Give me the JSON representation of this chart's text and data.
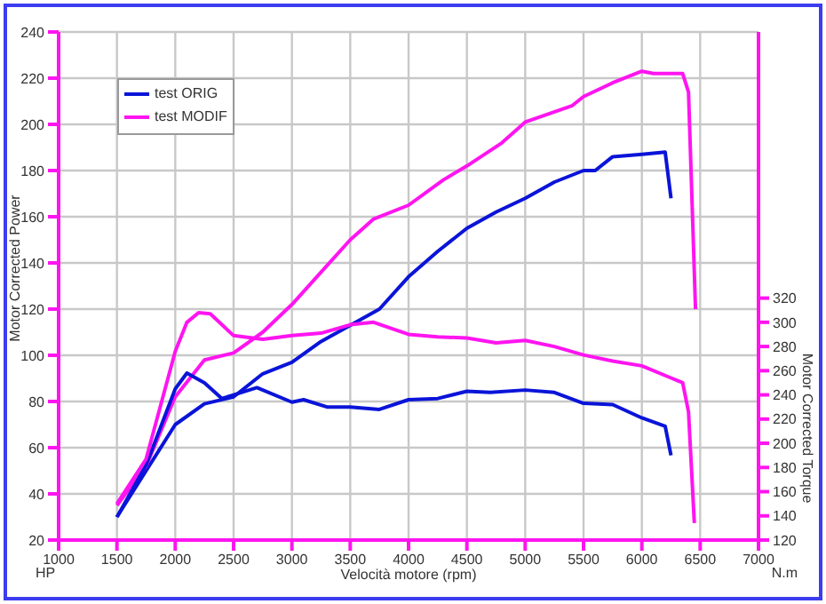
{
  "chart_data": {
    "type": "line",
    "xlabel": "Velocità motore (rpm)",
    "ylabel": "Motor Corrected Power",
    "y2label": "Motor Corrected Torque",
    "annotations": [
      "HP",
      "N.m"
    ],
    "xlim": [
      1000,
      7000
    ],
    "xticks": [
      1000,
      1500,
      2000,
      2500,
      3000,
      3500,
      4000,
      4500,
      5000,
      5500,
      6000,
      6500,
      7000
    ],
    "ylim": [
      20,
      240
    ],
    "yticks": [
      20,
      40,
      60,
      80,
      100,
      120,
      140,
      160,
      180,
      200,
      220,
      240
    ],
    "y2lim": [
      120,
      540
    ],
    "y2ticks": [
      120,
      140,
      160,
      180,
      200,
      220,
      240,
      260,
      280,
      300,
      320
    ],
    "grid": true,
    "legend": "top left",
    "marker": "none",
    "line_style": "solid",
    "series": [
      {
        "name": "test ORIG",
        "color": "#0a14d8",
        "x": [
          1500,
          1750,
          2000,
          2250,
          2500,
          2750,
          3000,
          3250,
          3500,
          3750,
          4000,
          4250,
          4500,
          4750,
          5000,
          5250,
          5500,
          5600,
          5750,
          6000,
          6200,
          6250
        ],
        "values": [
          30,
          50,
          70,
          79,
          82,
          92,
          97,
          106,
          113,
          120,
          134,
          145,
          155,
          162,
          168,
          175,
          180,
          180,
          186,
          187,
          188,
          168
        ]
      },
      {
        "name": "test MODIF",
        "color": "#ff14f0",
        "x": [
          1500,
          1750,
          2000,
          2250,
          2500,
          2750,
          3000,
          3250,
          3500,
          3700,
          4000,
          4300,
          4500,
          4800,
          5000,
          5400,
          5500,
          5750,
          6000,
          6100,
          6350,
          6400,
          6460
        ],
        "values": [
          35,
          52,
          82,
          98,
          101,
          110,
          122,
          136,
          150,
          159,
          165,
          176,
          182,
          192,
          201,
          208,
          212,
          218,
          223,
          222,
          222,
          214,
          120
        ]
      },
      {
        "color": "#0a14d8",
        "axis": "y2",
        "x": [
          1500,
          1750,
          2000,
          2100,
          2250,
          2400,
          2500,
          2700,
          3000,
          3100,
          3300,
          3500,
          3750,
          4000,
          4250,
          4500,
          4700,
          5000,
          5250,
          5500,
          5750,
          6000,
          6200,
          6250
        ],
        "values": [
          139,
          182,
          245,
          258,
          250,
          237,
          240,
          246,
          234,
          236,
          230,
          230,
          228,
          236,
          237,
          243,
          242,
          244,
          242,
          233,
          232,
          221,
          214,
          190
        ]
      },
      {
        "color": "#ff14f0",
        "axis": "y2",
        "x": [
          1500,
          1750,
          2000,
          2100,
          2200,
          2300,
          2500,
          2750,
          3000,
          3250,
          3500,
          3700,
          4000,
          4250,
          4500,
          4750,
          5000,
          5250,
          5500,
          5750,
          6000,
          6250,
          6350,
          6400,
          6450
        ],
        "values": [
          150,
          187,
          276,
          300,
          308,
          307,
          289,
          286,
          289,
          291,
          298,
          300,
          290,
          288,
          287,
          283,
          285,
          280,
          273,
          268,
          264,
          254,
          250,
          226,
          134
        ]
      }
    ]
  }
}
